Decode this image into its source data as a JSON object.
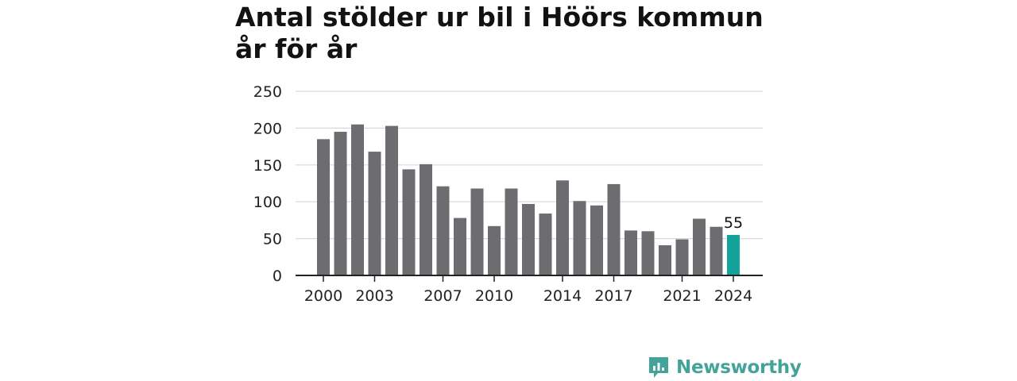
{
  "title": "Antal stölder ur bil i Höörs kommun år för år",
  "brand": {
    "name": "Newsworthy",
    "icon": "bar-chart-speech-bubble-icon",
    "color": "#43a39a"
  },
  "colors": {
    "bar": "#6d6c71",
    "highlight": "#13a398",
    "grid": "#d9d9d9",
    "axis": "#222222"
  },
  "chart_data": {
    "type": "bar",
    "categories": [
      "2000",
      "2001",
      "2002",
      "2003",
      "2004",
      "2005",
      "2006",
      "2007",
      "2008",
      "2009",
      "2010",
      "2011",
      "2012",
      "2013",
      "2014",
      "2015",
      "2016",
      "2017",
      "2018",
      "2019",
      "2020",
      "2021",
      "2022",
      "2023",
      "2024"
    ],
    "values": [
      185,
      195,
      205,
      168,
      203,
      144,
      151,
      121,
      78,
      118,
      67,
      118,
      97,
      84,
      129,
      101,
      95,
      124,
      61,
      60,
      41,
      49,
      77,
      66,
      55
    ],
    "highlight_index": 24,
    "highlight_label": "55",
    "ylim": [
      0,
      250
    ],
    "yticks": [
      0,
      50,
      100,
      150,
      200,
      250
    ],
    "xtick_labels": [
      "2000",
      "2003",
      "2007",
      "2010",
      "2014",
      "2017",
      "2021",
      "2024"
    ],
    "grid": true,
    "xlabel": "",
    "ylabel": ""
  }
}
